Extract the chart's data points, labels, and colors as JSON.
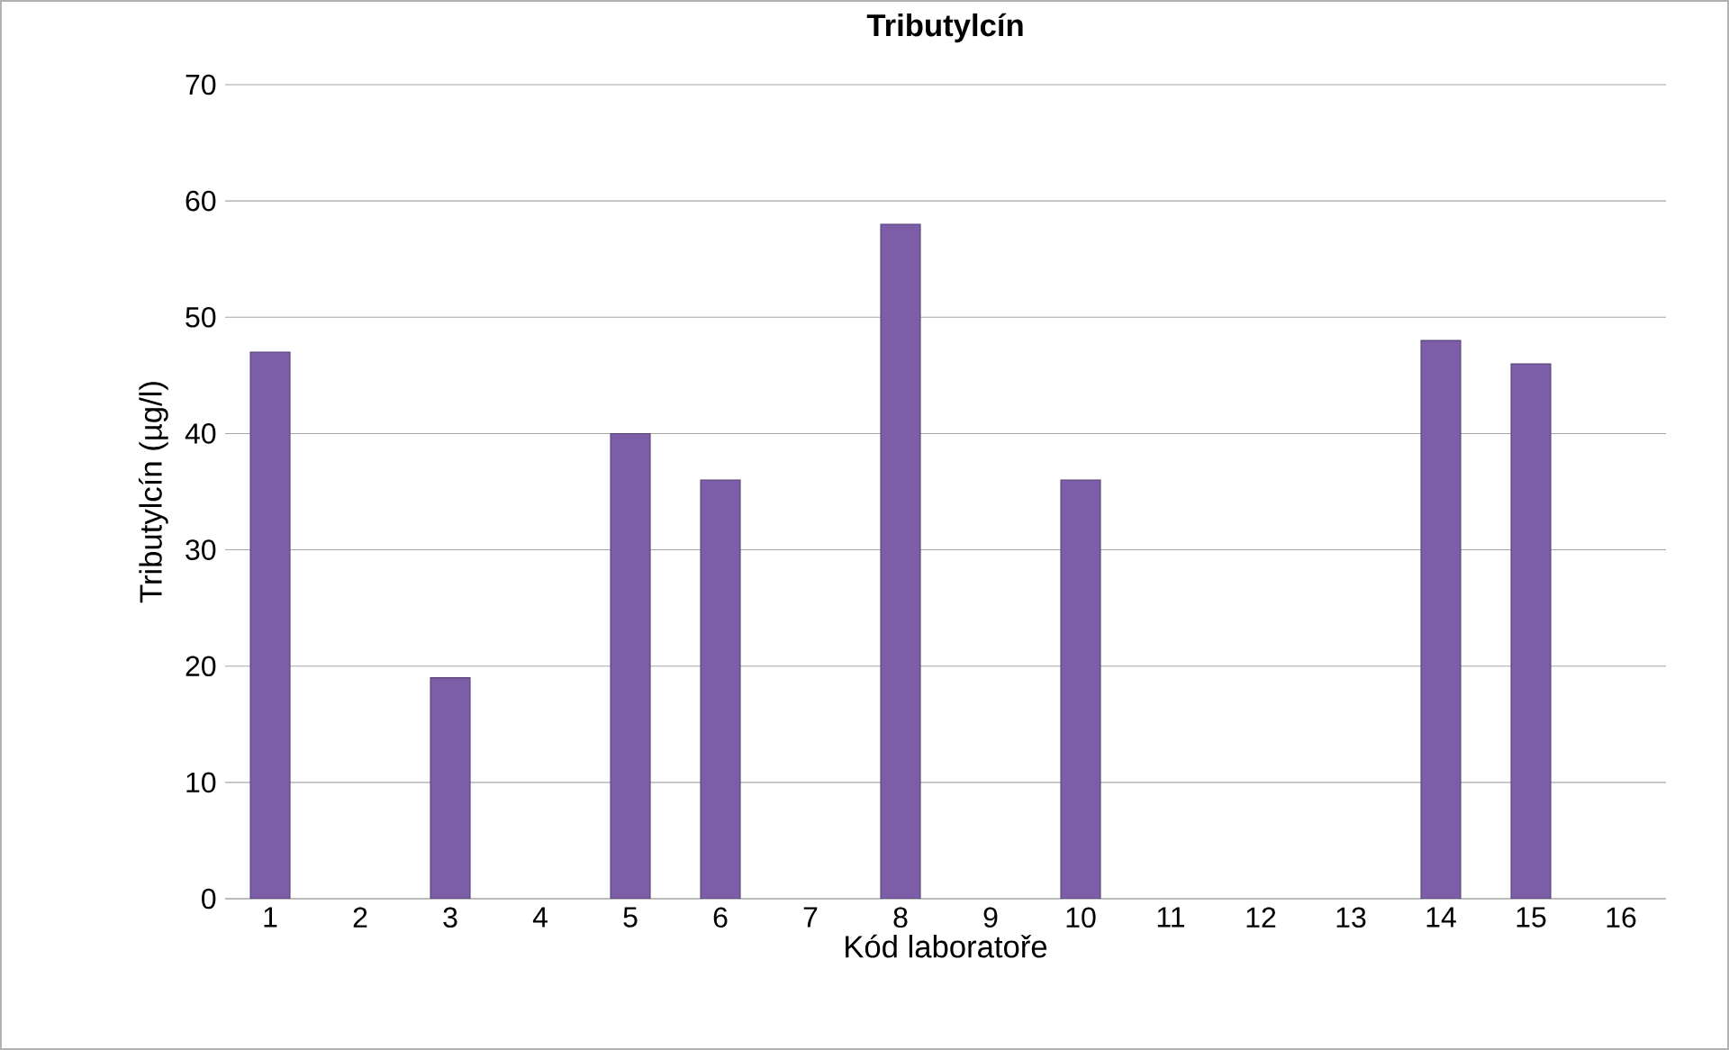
{
  "chart_data": {
    "type": "bar",
    "title": "Tributylcín",
    "xlabel": "Kód laboratoře",
    "ylabel": "Tributylcín (µg/l)",
    "categories": [
      "1",
      "2",
      "3",
      "4",
      "5",
      "6",
      "7",
      "8",
      "9",
      "10",
      "11",
      "12",
      "13",
      "14",
      "15",
      "16"
    ],
    "values": [
      47,
      null,
      19,
      null,
      40,
      36,
      null,
      58,
      null,
      36,
      null,
      null,
      null,
      48,
      46,
      null
    ],
    "color": "#7b5ea7",
    "ylim": [
      0,
      70
    ],
    "yticks": [
      0,
      10,
      20,
      30,
      40,
      50,
      60,
      70
    ],
    "grid": "y"
  }
}
